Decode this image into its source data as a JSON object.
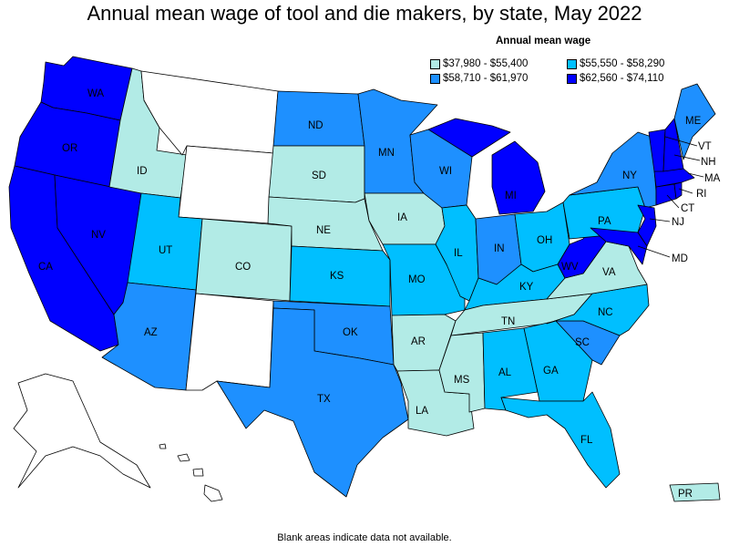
{
  "title": "Annual mean wage of tool and die makers, by state, May 2022",
  "legend": {
    "title": "Annual mean wage",
    "items": [
      {
        "label": "$37,980 - $55,400",
        "color": "#b2ebe6"
      },
      {
        "label": "$55,550 - $58,290",
        "color": "#00bfff"
      },
      {
        "label": "$58,710 - $61,970",
        "color": "#1e90ff"
      },
      {
        "label": "$62,560 - $74,110",
        "color": "#0000ff"
      }
    ]
  },
  "footnote": "Blank areas indicate data not available.",
  "colors": {
    "tier1": "#b2ebe6",
    "tier2": "#00bfff",
    "tier3": "#1e90ff",
    "tier4": "#0000ff",
    "nodata": "#ffffff"
  },
  "states": {
    "WA": {
      "label": "WA",
      "tier": 4
    },
    "OR": {
      "label": "OR",
      "tier": 4
    },
    "CA": {
      "label": "CA",
      "tier": 4
    },
    "NV": {
      "label": "NV",
      "tier": 4
    },
    "ID": {
      "label": "ID",
      "tier": 1
    },
    "MT": {
      "label": "",
      "tier": 0
    },
    "WY": {
      "label": "",
      "tier": 0
    },
    "UT": {
      "label": "UT",
      "tier": 2
    },
    "CO": {
      "label": "CO",
      "tier": 1
    },
    "AZ": {
      "label": "AZ",
      "tier": 3
    },
    "NM": {
      "label": "",
      "tier": 0
    },
    "ND": {
      "label": "ND",
      "tier": 3
    },
    "SD": {
      "label": "SD",
      "tier": 1
    },
    "NE": {
      "label": "NE",
      "tier": 1
    },
    "KS": {
      "label": "KS",
      "tier": 2
    },
    "OK": {
      "label": "OK",
      "tier": 3
    },
    "TX": {
      "label": "TX",
      "tier": 3
    },
    "MN": {
      "label": "MN",
      "tier": 3
    },
    "IA": {
      "label": "IA",
      "tier": 1
    },
    "MO": {
      "label": "MO",
      "tier": 2
    },
    "AR": {
      "label": "AR",
      "tier": 1
    },
    "LA": {
      "label": "LA",
      "tier": 1
    },
    "WI": {
      "label": "WI",
      "tier": 3
    },
    "IL": {
      "label": "IL",
      "tier": 2
    },
    "MI": {
      "label": "MI",
      "tier": 4
    },
    "IN": {
      "label": "IN",
      "tier": 3
    },
    "OH": {
      "label": "OH",
      "tier": 2
    },
    "KY": {
      "label": "KY",
      "tier": 2
    },
    "TN": {
      "label": "TN",
      "tier": 1
    },
    "MS": {
      "label": "MS",
      "tier": 1
    },
    "AL": {
      "label": "AL",
      "tier": 2
    },
    "GA": {
      "label": "GA",
      "tier": 2
    },
    "FL": {
      "label": "FL",
      "tier": 2
    },
    "SC": {
      "label": "SC",
      "tier": 3
    },
    "NC": {
      "label": "NC",
      "tier": 2
    },
    "VA": {
      "label": "VA",
      "tier": 1
    },
    "WV": {
      "label": "WV",
      "tier": 4
    },
    "PA": {
      "label": "PA",
      "tier": 2
    },
    "NY": {
      "label": "NY",
      "tier": 3
    },
    "NJ": {
      "label": "NJ",
      "tier": 4
    },
    "MD": {
      "label": "MD",
      "tier": 4
    },
    "CT": {
      "label": "CT",
      "tier": 4
    },
    "RI": {
      "label": "RI",
      "tier": 4
    },
    "MA": {
      "label": "MA",
      "tier": 4
    },
    "VT": {
      "label": "VT",
      "tier": 4
    },
    "NH": {
      "label": "NH",
      "tier": 4
    },
    "ME": {
      "label": "ME",
      "tier": 3
    },
    "AK": {
      "label": "",
      "tier": 0
    },
    "HI": {
      "label": "",
      "tier": 0
    },
    "PR": {
      "label": "PR",
      "tier": 1
    }
  }
}
